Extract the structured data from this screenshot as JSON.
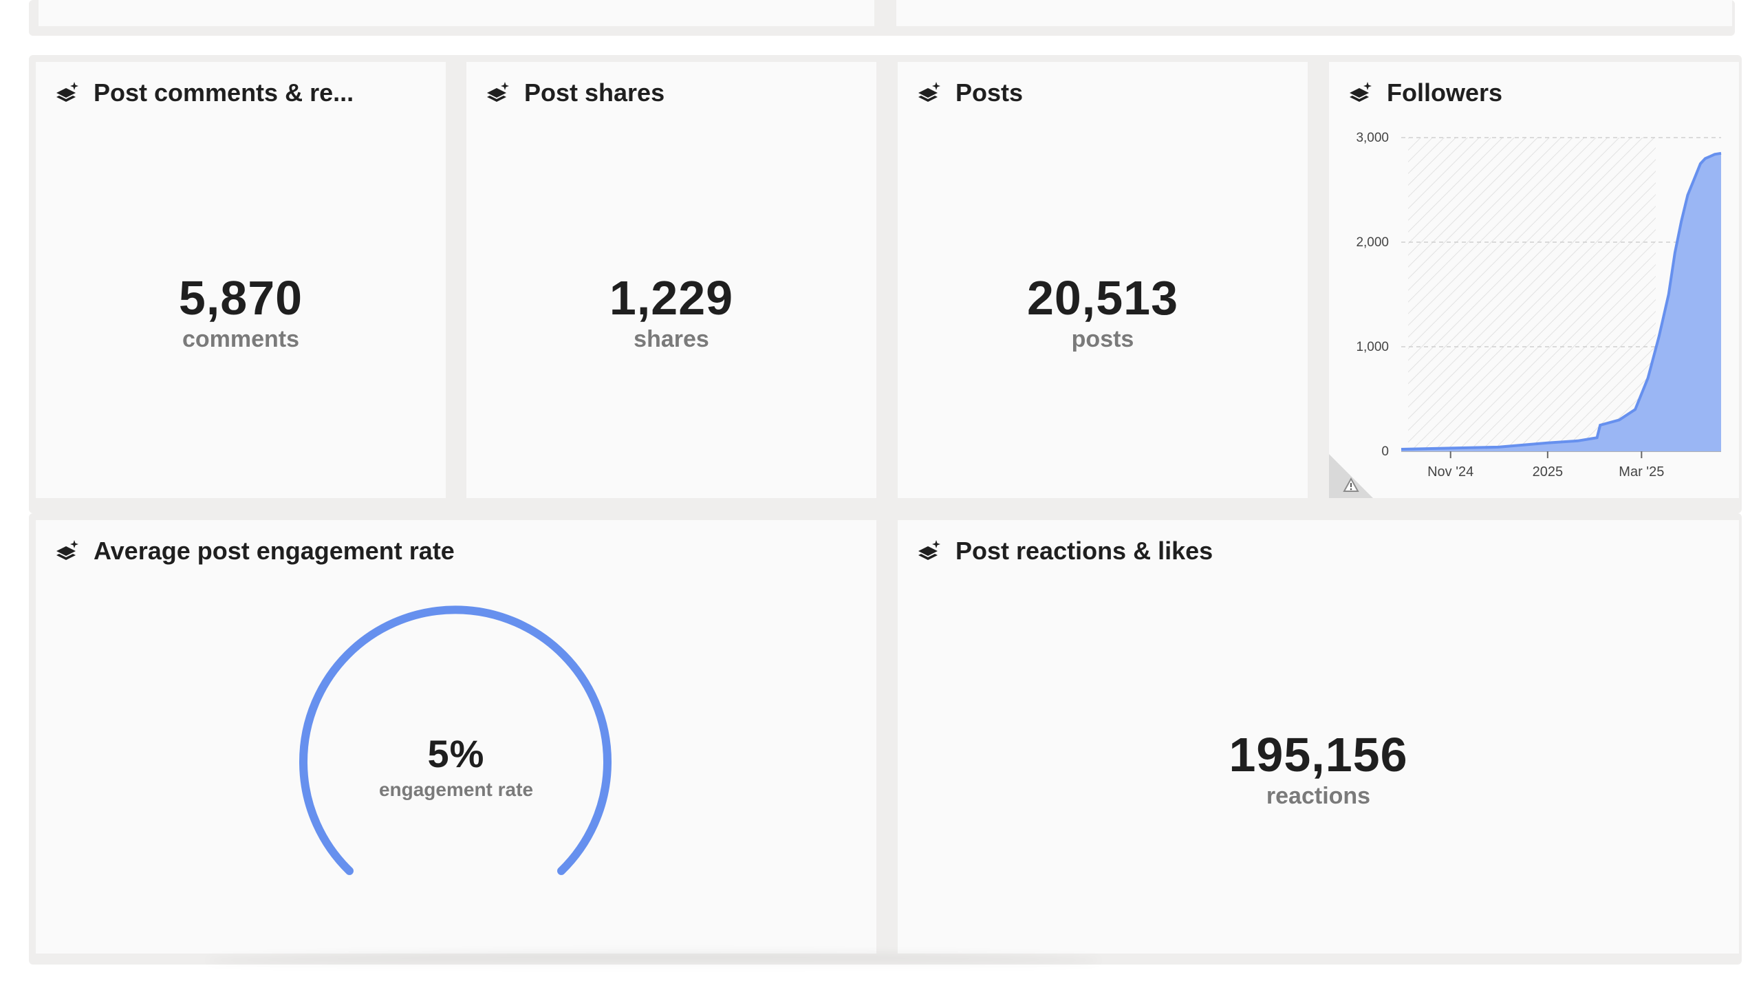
{
  "cards": {
    "comments": {
      "title": "Post comments & re...",
      "value": "5,870",
      "unit": "comments"
    },
    "shares": {
      "title": "Post shares",
      "value": "1,229",
      "unit": "shares"
    },
    "posts": {
      "title": "Posts",
      "value": "20,513",
      "unit": "posts"
    },
    "followers": {
      "title": "Followers"
    },
    "engagement": {
      "title": "Average post engagement rate",
      "value": "5%",
      "unit": "engagement rate",
      "percent": 5
    },
    "reactions": {
      "title": "Post reactions & likes",
      "value": "195,156",
      "unit": "reactions"
    }
  },
  "icons": {
    "card_icon": "layers-sparkle-icon",
    "warning": "warning-triangle-icon"
  },
  "colors": {
    "accent": "#6690ee",
    "fill": "#9ab6f4",
    "text": "#1f1f1f",
    "muted": "#7a7a7a"
  },
  "chart_data": {
    "type": "area",
    "title": "Followers",
    "xlabel": "",
    "ylabel": "",
    "ylim": [
      0,
      3000
    ],
    "y_ticks": [
      "0",
      "1,000",
      "2,000",
      "3,000"
    ],
    "x_ticks": [
      "Nov '24",
      "2025",
      "Mar '25"
    ],
    "grid": true,
    "series": [
      {
        "x": [
          "2024-10-01",
          "2024-11-01",
          "2024-12-01",
          "2025-01-01",
          "2025-01-20",
          "2025-02-01",
          "2025-02-03",
          "2025-02-15",
          "2025-02-25",
          "2025-03-05",
          "2025-03-12",
          "2025-03-18",
          "2025-03-22",
          "2025-03-26",
          "2025-03-30",
          "2025-04-03",
          "2025-04-07",
          "2025-04-10",
          "2025-04-13",
          "2025-04-16",
          "2025-04-20"
        ],
        "values": [
          20,
          30,
          40,
          80,
          100,
          130,
          250,
          300,
          400,
          700,
          1100,
          1500,
          1900,
          2200,
          2450,
          2600,
          2750,
          2800,
          2820,
          2840,
          2850
        ]
      }
    ]
  }
}
